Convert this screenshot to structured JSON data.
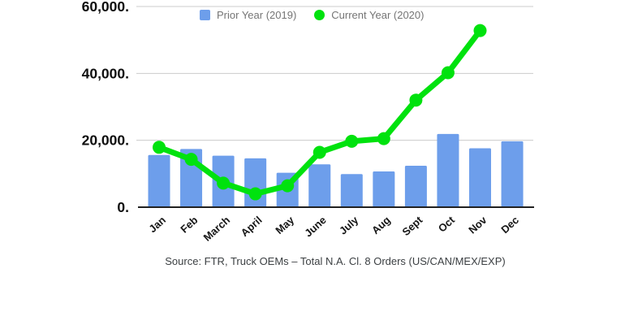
{
  "chart_data": {
    "type": "combo-bar-line",
    "categories": [
      "Jan",
      "Feb",
      "March",
      "April",
      "May",
      "June",
      "July",
      "Aug",
      "Sept",
      "Oct",
      "Nov",
      "Dec"
    ],
    "series": [
      {
        "name": "Prior Year (2019)",
        "type": "bar",
        "color": "#6d9eeb",
        "values": [
          15600,
          17400,
          15400,
          14600,
          10300,
          12800,
          9900,
          10700,
          12400,
          21900,
          17600,
          19700
        ]
      },
      {
        "name": "Current Year (2020)",
        "type": "line",
        "color": "#00e20e",
        "values": [
          17900,
          14300,
          7200,
          4000,
          6400,
          16400,
          19700,
          20500,
          32000,
          40200,
          52800,
          null
        ]
      }
    ],
    "title": "",
    "xlabel": "",
    "ylabel": "",
    "ylim": [
      0,
      60000
    ],
    "yticks": [
      0,
      20000,
      40000,
      60000
    ],
    "ytick_labels": [
      "0.",
      "20,000.",
      "40,000.",
      "60,000."
    ],
    "grid": true,
    "legend_position": "top",
    "source_note": "Source: FTR, Truck OEMs – Total N.A. Cl. 8 Orders (US/CAN/MEX/EXP)"
  },
  "colors": {
    "gridline": "#cccccc",
    "axis_line": "#212121",
    "y_tick_label": "#0f0f0f",
    "x_tick_label": "#161616",
    "legend_text": "#757575",
    "source_text": "#3c4043"
  }
}
